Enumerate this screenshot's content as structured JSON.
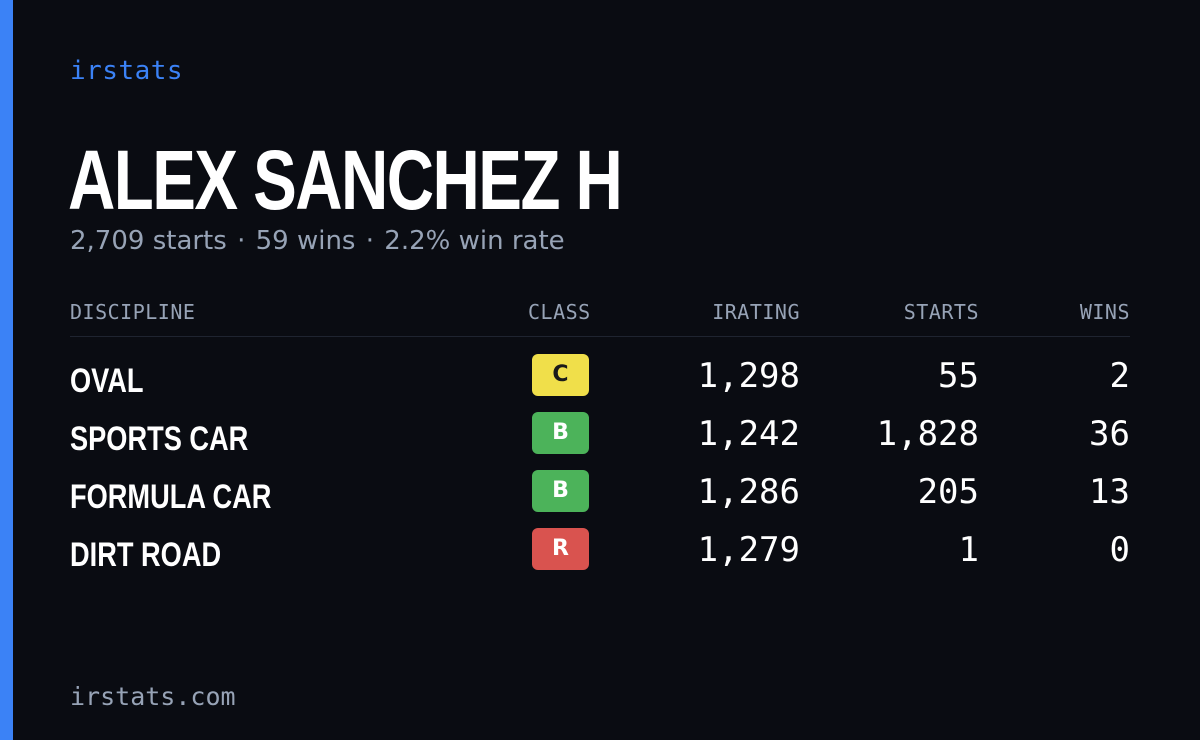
{
  "brand": "irstats",
  "driver": {
    "name": "ALEX SANCHEZ H",
    "summary": {
      "starts": "2,709 starts",
      "wins": "59 wins",
      "win_rate": "2.2% win rate",
      "separator": "·"
    }
  },
  "table": {
    "headers": {
      "discipline": "DISCIPLINE",
      "class": "CLASS",
      "irating": "IRATING",
      "starts": "STARTS",
      "wins": "WINS"
    },
    "rows": [
      {
        "discipline": "OVAL",
        "class": "C",
        "class_color": "#f0df4a",
        "class_text_color": "#1a1a1a",
        "irating": "1,298",
        "starts": "55",
        "wins": "2"
      },
      {
        "discipline": "SPORTS CAR",
        "class": "B",
        "class_color": "#4cb35a",
        "class_text_color": "#ffffff",
        "irating": "1,242",
        "starts": "1,828",
        "wins": "36"
      },
      {
        "discipline": "FORMULA CAR",
        "class": "B",
        "class_color": "#4cb35a",
        "class_text_color": "#ffffff",
        "irating": "1,286",
        "starts": "205",
        "wins": "13"
      },
      {
        "discipline": "DIRT ROAD",
        "class": "R",
        "class_color": "#d9534f",
        "class_text_color": "#ffffff",
        "irating": "1,279",
        "starts": "1",
        "wins": "0"
      }
    ]
  },
  "footer": "irstats.com",
  "colors": {
    "accent": "#3b82f6",
    "background": "#0a0c12",
    "muted_text": "#97a3b6"
  }
}
